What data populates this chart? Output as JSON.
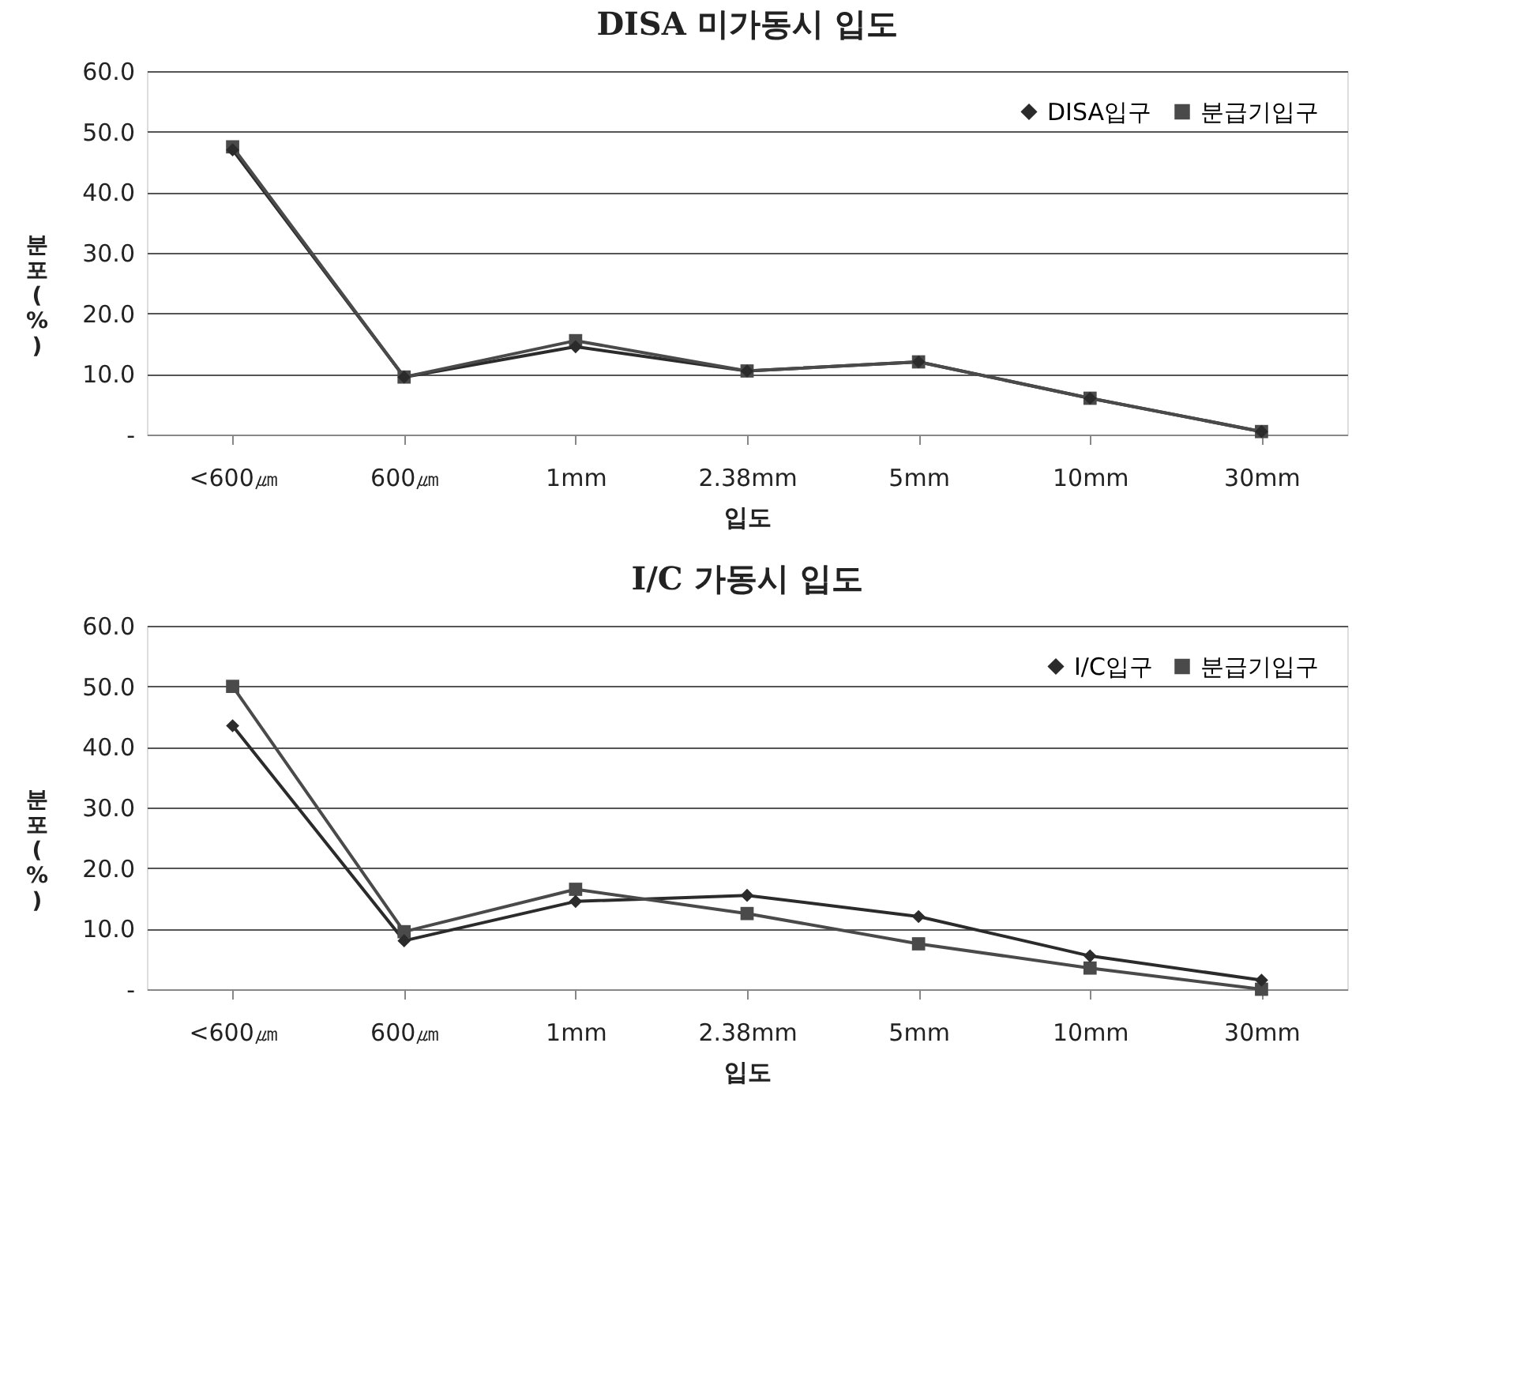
{
  "chart_data": [
    {
      "type": "line",
      "title": "DISA 미가동시 입도",
      "xlabel": "입도",
      "ylabel": "분포(%)",
      "categories": [
        "<600㎛",
        "600㎛",
        "1mm",
        "2.38mm",
        "5mm",
        "10mm",
        "30mm"
      ],
      "series": [
        {
          "name": "DISA입구",
          "color": "#2b2b2b",
          "marker": "diamond",
          "values": [
            47,
            9.5,
            14.5,
            10.5,
            12,
            6,
            0.5
          ]
        },
        {
          "name": "분급기입구",
          "color": "#4a4a4a",
          "marker": "square",
          "values": [
            47.5,
            9.5,
            15.5,
            10.5,
            12,
            6,
            0.5
          ]
        }
      ],
      "ylim": [
        0,
        60
      ],
      "yticks": [
        {
          "value": 0,
          "label": "-"
        },
        {
          "value": 10,
          "label": "10.0"
        },
        {
          "value": 20,
          "label": "20.0"
        },
        {
          "value": 30,
          "label": "30.0"
        },
        {
          "value": 40,
          "label": "40.0"
        },
        {
          "value": 50,
          "label": "50.0"
        },
        {
          "value": 60,
          "label": "60.0"
        }
      ],
      "grid": "y",
      "legend": "top right",
      "line_style": "solid"
    },
    {
      "type": "line",
      "title": "I/C 가동시 입도",
      "xlabel": "입도",
      "ylabel": "분포(%)",
      "categories": [
        "<600㎛",
        "600㎛",
        "1mm",
        "2.38mm",
        "5mm",
        "10mm",
        "30mm"
      ],
      "series": [
        {
          "name": "I/C입구",
          "color": "#2b2b2b",
          "marker": "diamond",
          "values": [
            43.5,
            8,
            14.5,
            15.5,
            12,
            5.5,
            1.5
          ]
        },
        {
          "name": "분급기입구",
          "color": "#4a4a4a",
          "marker": "square",
          "values": [
            50,
            9.5,
            16.5,
            12.5,
            7.5,
            3.5,
            0
          ]
        }
      ],
      "ylim": [
        0,
        60
      ],
      "yticks": [
        {
          "value": 0,
          "label": "-"
        },
        {
          "value": 10,
          "label": "10.0"
        },
        {
          "value": 20,
          "label": "20.0"
        },
        {
          "value": 30,
          "label": "30.0"
        },
        {
          "value": 40,
          "label": "40.0"
        },
        {
          "value": 50,
          "label": "50.0"
        },
        {
          "value": 60,
          "label": "60.0"
        }
      ],
      "grid": "y",
      "legend": "top right",
      "line_style": "solid"
    }
  ]
}
